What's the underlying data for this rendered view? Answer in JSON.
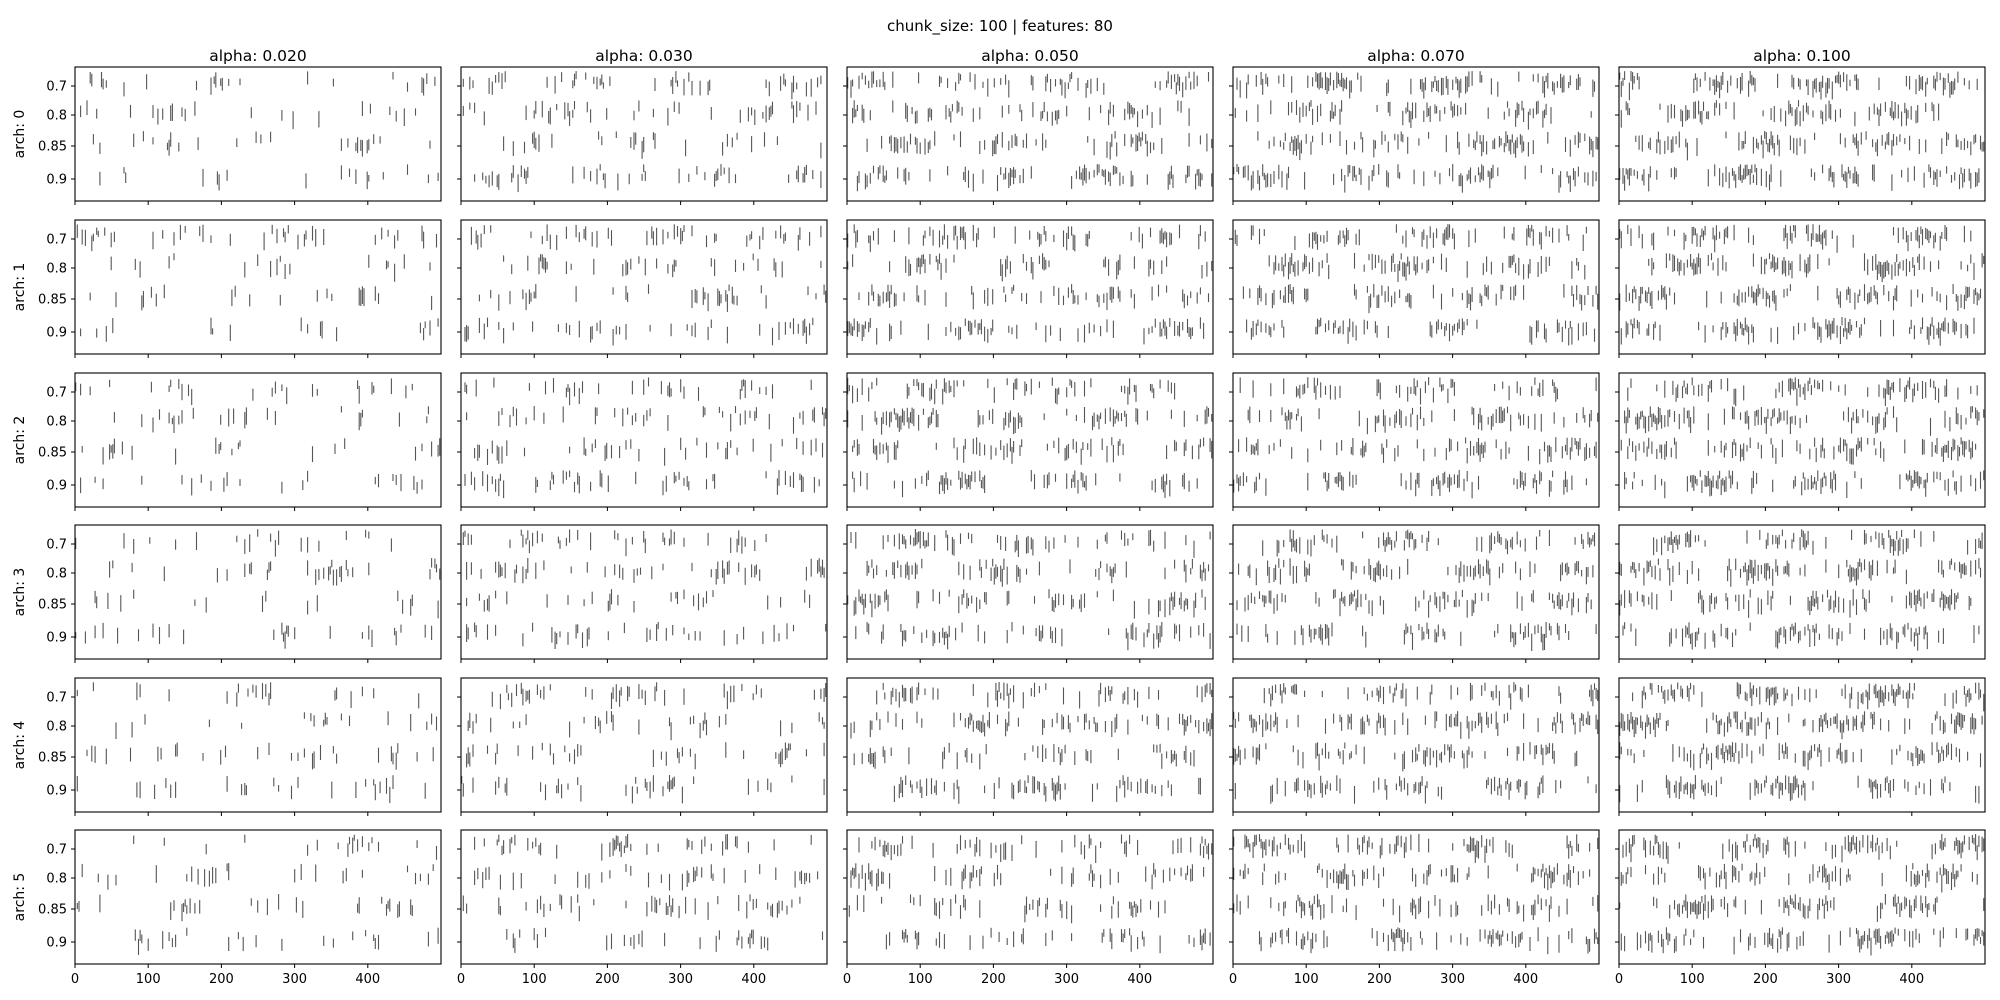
{
  "figure": {
    "suptitle": "chunk_size: 100 | features: 80"
  },
  "chart_data": {
    "type": "raster",
    "title": "chunk_size: 100 | features: 80",
    "columns": [
      {
        "label": "alpha: 0.020",
        "alpha": 0.02
      },
      {
        "label": "alpha: 0.030",
        "alpha": 0.03
      },
      {
        "label": "alpha: 0.050",
        "alpha": 0.05
      },
      {
        "label": "alpha: 0.070",
        "alpha": 0.07
      },
      {
        "label": "alpha: 0.100",
        "alpha": 0.1
      }
    ],
    "rows": [
      {
        "label": "arch: 0"
      },
      {
        "label": "arch: 1"
      },
      {
        "label": "arch: 2"
      },
      {
        "label": "arch: 3"
      },
      {
        "label": "arch: 4"
      },
      {
        "label": "arch: 5"
      }
    ],
    "y_categories": [
      "0.7",
      "0.8",
      "0.85",
      "0.9"
    ],
    "x_ticks": [
      0,
      100,
      200,
      300,
      400
    ],
    "xlim": [
      0,
      500
    ],
    "event_color": "#555555",
    "density_by_alpha": [
      0.2,
      0.3,
      0.45,
      0.55,
      0.65
    ]
  }
}
